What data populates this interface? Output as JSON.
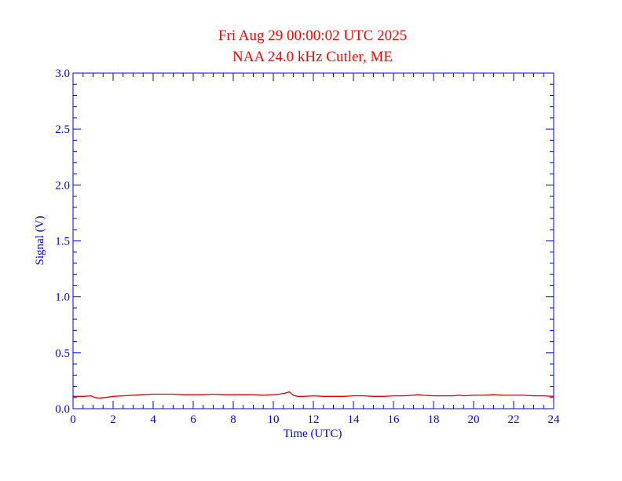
{
  "colors": {
    "title": "#ff0000",
    "axes": "#0000ff",
    "series": "#e00000",
    "background": "#ffffff"
  },
  "chart_data": {
    "type": "line",
    "title": "Fri Aug 29 00:00:02 UTC 2025",
    "subtitle": "NAA 24.0 kHz Cutler, ME",
    "xlabel": "Time (UTC)",
    "ylabel": "Signal (V)",
    "xlim": [
      0,
      24
    ],
    "ylim": [
      0,
      3.0
    ],
    "x_ticks": [
      0,
      2,
      4,
      6,
      8,
      10,
      12,
      14,
      16,
      18,
      20,
      22,
      24
    ],
    "x_tick_labels": [
      "0",
      "2",
      "4",
      "6",
      "8",
      "10",
      "12",
      "14",
      "16",
      "18",
      "20",
      "22",
      "24"
    ],
    "y_ticks": [
      0,
      0.5,
      1.0,
      1.5,
      2.0,
      2.5,
      3.0
    ],
    "y_tick_labels": [
      "0.0",
      "0.5",
      "1.0",
      "1.5",
      "2.0",
      "2.5",
      "3.0"
    ],
    "x_minor_step": 0.5,
    "y_minor_step": 0.1,
    "grid": false,
    "legend": "none",
    "series": [
      {
        "x": [
          0.0,
          0.5,
          0.9,
          1.1,
          1.3,
          1.6,
          2.0,
          2.5,
          3.0,
          3.5,
          4.0,
          4.5,
          5.0,
          5.5,
          6.0,
          6.5,
          7.0,
          7.5,
          8.0,
          8.5,
          9.0,
          9.5,
          10.0,
          10.3,
          10.6,
          10.8,
          11.0,
          11.2,
          11.5,
          12.0,
          12.5,
          13.0,
          13.5,
          14.0,
          14.5,
          15.0,
          15.5,
          16.0,
          16.5,
          17.0,
          17.2,
          17.5,
          18.0,
          18.5,
          19.0,
          19.3,
          19.5,
          20.0,
          20.5,
          21.0,
          21.5,
          22.0,
          22.5,
          23.0,
          23.5,
          24.0
        ],
        "y": [
          0.11,
          0.11,
          0.115,
          0.1,
          0.095,
          0.1,
          0.11,
          0.115,
          0.12,
          0.125,
          0.13,
          0.13,
          0.13,
          0.125,
          0.125,
          0.125,
          0.13,
          0.125,
          0.125,
          0.125,
          0.125,
          0.12,
          0.125,
          0.13,
          0.14,
          0.15,
          0.12,
          0.11,
          0.11,
          0.115,
          0.11,
          0.11,
          0.11,
          0.115,
          0.115,
          0.11,
          0.11,
          0.115,
          0.115,
          0.12,
          0.125,
          0.12,
          0.115,
          0.115,
          0.115,
          0.12,
          0.115,
          0.12,
          0.12,
          0.125,
          0.12,
          0.12,
          0.12,
          0.115,
          0.115,
          0.11
        ]
      }
    ]
  }
}
